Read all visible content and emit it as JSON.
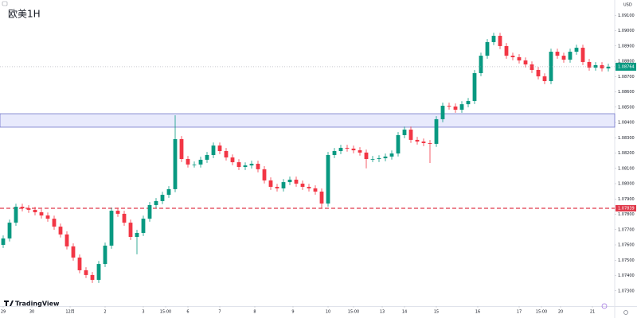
{
  "chart_data": {
    "type": "candlestick",
    "title": "欧美1H",
    "currency": "USD",
    "brand": "TradingView",
    "up_color": "#089981",
    "down_color": "#f23645",
    "xlim": [
      -0.5,
      95.5
    ],
    "xticks": [
      {
        "value": 0,
        "label": "29"
      },
      {
        "value": 4.5,
        "label": "30"
      },
      {
        "value": 10.5,
        "label": "12月"
      },
      {
        "value": 16,
        "label": "2"
      },
      {
        "value": 22,
        "label": "3"
      },
      {
        "value": 25.5,
        "label": "15:00"
      },
      {
        "value": 29,
        "label": "6"
      },
      {
        "value": 34,
        "label": "7"
      },
      {
        "value": 39.5,
        "label": "8"
      },
      {
        "value": 45.5,
        "label": "9"
      },
      {
        "value": 51,
        "label": "10"
      },
      {
        "value": 55,
        "label": "15:00"
      },
      {
        "value": 59.5,
        "label": "13"
      },
      {
        "value": 63,
        "label": "14"
      },
      {
        "value": 68,
        "label": "15"
      },
      {
        "value": 74.5,
        "label": "16"
      },
      {
        "value": 81,
        "label": "17"
      },
      {
        "value": 84.5,
        "label": "15:00"
      },
      {
        "value": 87.5,
        "label": "20"
      },
      {
        "value": 92.5,
        "label": "21"
      }
    ],
    "ylim": [
      1.072,
      1.092
    ],
    "yticks": [
      {
        "value": 1.073,
        "label": "1.07300"
      },
      {
        "value": 1.074,
        "label": "1.07400"
      },
      {
        "value": 1.075,
        "label": "1.07500"
      },
      {
        "value": 1.076,
        "label": "1.07600"
      },
      {
        "value": 1.077,
        "label": "1.07700"
      },
      {
        "value": 1.078,
        "label": "1.07800"
      },
      {
        "value": 1.079,
        "label": "1.07900"
      },
      {
        "value": 1.08,
        "label": "1.08000"
      },
      {
        "value": 1.081,
        "label": "1.08100"
      },
      {
        "value": 1.082,
        "label": "1.08200"
      },
      {
        "value": 1.083,
        "label": "1.08300"
      },
      {
        "value": 1.084,
        "label": "1.08400"
      },
      {
        "value": 1.085,
        "label": "1.08500"
      },
      {
        "value": 1.086,
        "label": "1.08600"
      },
      {
        "value": 1.087,
        "label": "1.08700"
      },
      {
        "value": 1.088,
        "label": "1.08800"
      },
      {
        "value": 1.089,
        "label": "1.08900"
      },
      {
        "value": 1.09,
        "label": "1.09000"
      },
      {
        "value": 1.091,
        "label": "1.09100"
      }
    ],
    "zone": [
      1.08369,
      1.08457
    ],
    "zone_color": "#e8eafc",
    "zone_border": "#6f74c9",
    "support_line": 1.07839,
    "support_color": "#e0394a",
    "open": [
      1.076,
      1.07642,
      1.07745,
      1.07849,
      1.07839,
      1.07829,
      1.07813,
      1.07792,
      1.07771,
      1.07719,
      1.07668,
      1.0759,
      1.07517,
      1.07434,
      1.07403,
      1.07371,
      1.07475,
      1.07595,
      1.07823,
      1.07803,
      1.07745,
      1.07652,
      1.07678,
      1.07771,
      1.0786,
      1.07886,
      1.07927,
      1.07964,
      1.08291,
      1.08161,
      1.08125,
      1.08125,
      1.08156,
      1.08187,
      1.08249,
      1.08213,
      1.08171,
      1.0814,
      1.08109,
      1.08119,
      1.0813,
      1.08094,
      1.08021,
      1.07979,
      1.07969,
      1.0801,
      1.08026,
      1.08,
      1.07979,
      1.07969,
      1.07948,
      1.0787,
      1.08187,
      1.08213,
      1.08234,
      1.08229,
      1.08218,
      1.08203,
      1.08161,
      1.08161,
      1.08166,
      1.08177,
      1.08197,
      1.08317,
      1.08353,
      1.08286,
      1.08275,
      1.08265,
      1.0826,
      1.08421,
      1.08509,
      1.08504,
      1.08483,
      1.08519,
      1.0854,
      1.08722,
      1.08836,
      1.08925,
      1.08966,
      1.08899,
      1.08836,
      1.08826,
      1.08805,
      1.08779,
      1.08743,
      1.08701,
      1.0867,
      1.08862,
      1.08836,
      1.0881,
      1.08862,
      1.08888,
      1.08795,
      1.08758,
      1.08774,
      1.08753
    ],
    "high": [
      1.07662,
      1.07765,
      1.07869,
      1.07869,
      1.07859,
      1.07849,
      1.07833,
      1.07812,
      1.07791,
      1.07739,
      1.07688,
      1.0761,
      1.07537,
      1.07454,
      1.07423,
      1.07495,
      1.07615,
      1.07843,
      1.07843,
      1.07823,
      1.07765,
      1.07698,
      1.07791,
      1.0788,
      1.07906,
      1.07947,
      1.07984,
      1.08447,
      1.08311,
      1.08181,
      1.08145,
      1.08176,
      1.08207,
      1.08269,
      1.08269,
      1.08233,
      1.08191,
      1.0816,
      1.08139,
      1.0815,
      1.0815,
      1.08114,
      1.08041,
      1.07999,
      1.0803,
      1.08046,
      1.08046,
      1.0802,
      1.07999,
      1.07989,
      1.07968,
      1.08207,
      1.08233,
      1.08254,
      1.08254,
      1.08249,
      1.08238,
      1.08223,
      1.08181,
      1.08186,
      1.08197,
      1.08217,
      1.08337,
      1.08373,
      1.08373,
      1.08306,
      1.08295,
      1.08285,
      1.08441,
      1.08529,
      1.08529,
      1.08524,
      1.08539,
      1.0856,
      1.08742,
      1.08856,
      1.08945,
      1.08986,
      1.08986,
      1.08919,
      1.08856,
      1.08846,
      1.08825,
      1.08799,
      1.08763,
      1.08721,
      1.08882,
      1.08882,
      1.08856,
      1.08882,
      1.08908,
      1.08908,
      1.08815,
      1.08794,
      1.08794,
      1.08784
    ],
    "low": [
      1.0758,
      1.07622,
      1.07725,
      1.07819,
      1.07809,
      1.07793,
      1.07772,
      1.07751,
      1.07699,
      1.07648,
      1.0757,
      1.07497,
      1.07414,
      1.07383,
      1.07351,
      1.07351,
      1.07455,
      1.07575,
      1.07783,
      1.07725,
      1.07632,
      1.07538,
      1.07658,
      1.07751,
      1.0784,
      1.07866,
      1.07907,
      1.07944,
      1.08141,
      1.08105,
      1.08105,
      1.08105,
      1.08136,
      1.08167,
      1.08193,
      1.08151,
      1.0812,
      1.08089,
      1.08089,
      1.08099,
      1.08074,
      1.08001,
      1.07959,
      1.07949,
      1.07949,
      1.0799,
      1.0798,
      1.07959,
      1.07949,
      1.07928,
      1.0784,
      1.0785,
      1.08167,
      1.08193,
      1.08209,
      1.08198,
      1.08183,
      1.081,
      1.08141,
      1.08141,
      1.08146,
      1.08157,
      1.08177,
      1.08297,
      1.08266,
      1.08255,
      1.08245,
      1.08135,
      1.0824,
      1.08401,
      1.08484,
      1.08463,
      1.08463,
      1.08499,
      1.0852,
      1.08702,
      1.08816,
      1.08905,
      1.08879,
      1.08816,
      1.08806,
      1.08785,
      1.08759,
      1.08723,
      1.08681,
      1.0865,
      1.0865,
      1.08816,
      1.0879,
      1.0879,
      1.08842,
      1.08775,
      1.08738,
      1.08738,
      1.08733,
      1.08733
    ],
    "close": [
      1.07642,
      1.07745,
      1.07849,
      1.07839,
      1.07829,
      1.07813,
      1.07792,
      1.07771,
      1.07719,
      1.07668,
      1.0759,
      1.07517,
      1.07434,
      1.07403,
      1.07371,
      1.07475,
      1.07595,
      1.07823,
      1.07803,
      1.07745,
      1.07652,
      1.07678,
      1.07771,
      1.0786,
      1.07886,
      1.07927,
      1.07964,
      1.08291,
      1.08161,
      1.08125,
      1.08125,
      1.08156,
      1.08187,
      1.08249,
      1.08213,
      1.08171,
      1.0814,
      1.08109,
      1.08119,
      1.0813,
      1.08094,
      1.08021,
      1.07979,
      1.07969,
      1.0801,
      1.08026,
      1.08,
      1.07979,
      1.07969,
      1.07948,
      1.0787,
      1.08187,
      1.08213,
      1.08234,
      1.08229,
      1.08218,
      1.08203,
      1.08161,
      1.08161,
      1.08166,
      1.08177,
      1.08197,
      1.08317,
      1.08353,
      1.08286,
      1.08275,
      1.08265,
      1.0826,
      1.08421,
      1.08509,
      1.08504,
      1.08483,
      1.08519,
      1.0854,
      1.08722,
      1.08836,
      1.08925,
      1.08966,
      1.08899,
      1.08836,
      1.08826,
      1.08805,
      1.08779,
      1.08743,
      1.08701,
      1.0867,
      1.08862,
      1.08836,
      1.0881,
      1.08862,
      1.08888,
      1.08795,
      1.08758,
      1.08774,
      1.08753,
      1.08764
    ]
  }
}
